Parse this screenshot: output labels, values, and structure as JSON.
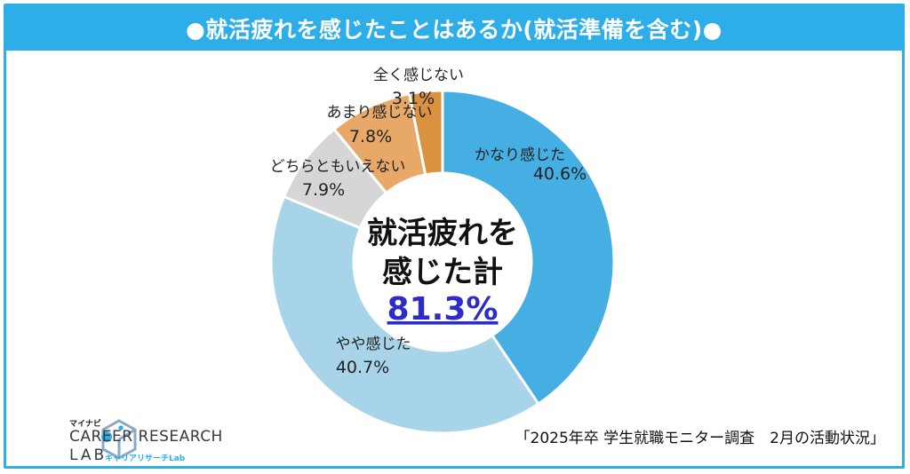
{
  "title": "●就活疲れを感じたことはあるか(就活準備を含む)●",
  "chart_data": {
    "type": "pie",
    "categories": [
      "かなり感じた",
      "やや感じた",
      "どちらともいえない",
      "あまり感じない",
      "全く感じない"
    ],
    "values": [
      40.6,
      40.7,
      7.9,
      7.8,
      3.1
    ],
    "value_labels": [
      "40.6%",
      "40.7%",
      "7.9%",
      "7.8%",
      "3.1%"
    ],
    "colors": [
      "#45aee3",
      "#a8d4ea",
      "#d6d6d6",
      "#e8a968",
      "#d9923f"
    ],
    "donut": true,
    "center": {
      "line1": "就活疲れを",
      "line2": "感じた計",
      "value": "81.3%"
    }
  },
  "center_value_color": "#2c2cc8",
  "source": "「2025年卒 学生就職モニター調査　2月の活動状況」",
  "logo": {
    "small": "マイナビ",
    "main": "CAREER RESEARCH",
    "sub1": "LAB",
    "sub2": "キャリアリサーチLab"
  }
}
